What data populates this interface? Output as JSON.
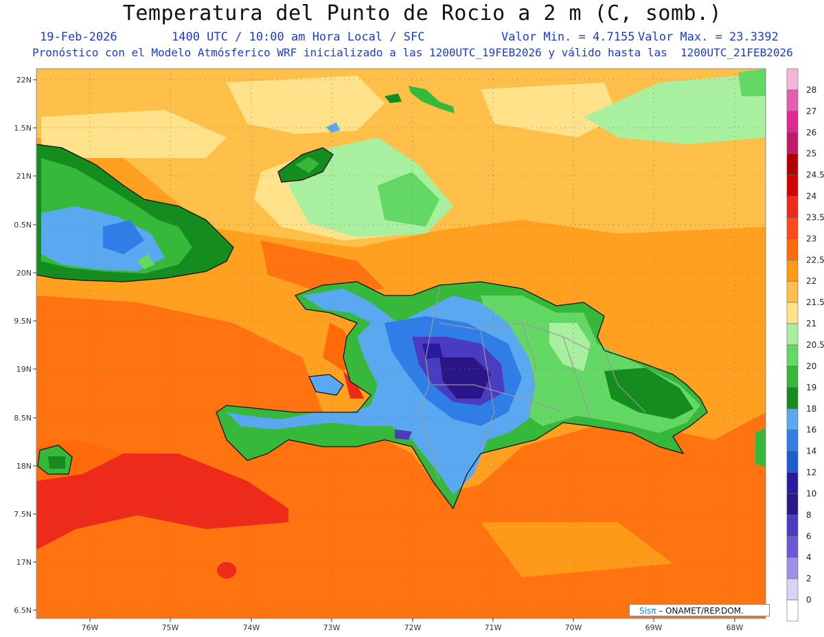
{
  "header": {
    "title": "Temperatura del Punto de Rocio a 2 m (C, somb.)",
    "date": "19-Feb-2026",
    "time": "1400 UTC / 10:00 am Hora Local / SFC",
    "min": "Valor Min. = 4.7155",
    "max": "Valor Max. = 23.3392",
    "description": "Pronóstico con el Modelo Atmósferico WRF inicializado a las 1200UTC_19FEB2026 y válido hasta las  1200UTC_21FEB2026"
  },
  "axes": {
    "lat_labels": [
      "22N",
      "1.5N",
      "21N",
      "0.5N",
      "20N",
      "9.5N",
      "19N",
      "8.5N",
      "18N",
      "7.5N",
      "17N",
      "6.5N"
    ],
    "lon_labels": [
      "76W",
      "75W",
      "74W",
      "73W",
      "72W",
      "71W",
      "70W",
      "69W",
      "68W"
    ]
  },
  "colorbar": {
    "labels": [
      "28",
      "27",
      "26",
      "25",
      "24.5",
      "24",
      "23.5",
      "23",
      "22.5",
      "22",
      "21.5",
      "21",
      "20.5",
      "20",
      "19",
      "18",
      "16",
      "14",
      "12",
      "10",
      "8",
      "6",
      "4",
      "2",
      "0"
    ],
    "colors": [
      "#f4b6d8",
      "#e85cb4",
      "#e02890",
      "#c21a6a",
      "#b00000",
      "#d40000",
      "#ee2a1a",
      "#ff4a1a",
      "#ff6a0a",
      "#ff9a18",
      "#ffc04a",
      "#ffe28a",
      "#a8f0a0",
      "#64d864",
      "#36b83a",
      "#148c1e",
      "#5aa8f0",
      "#2f7ee8",
      "#1a5ed0",
      "#2a1aa0",
      "#2b1688",
      "#4a3cc0",
      "#6a5ad8",
      "#a090ec",
      "#d8d4f4",
      "#ffffff"
    ]
  },
  "colors": {
    "ocean_dominant": "#ff9a18",
    "hot_ocean": "#ff6a0a",
    "very_hot": "#ee2a1a",
    "title_blue": "#1a3cd6"
  },
  "credit": {
    "sis": "Sisπ",
    "rest": "– ONAMET/REP.DOM."
  }
}
